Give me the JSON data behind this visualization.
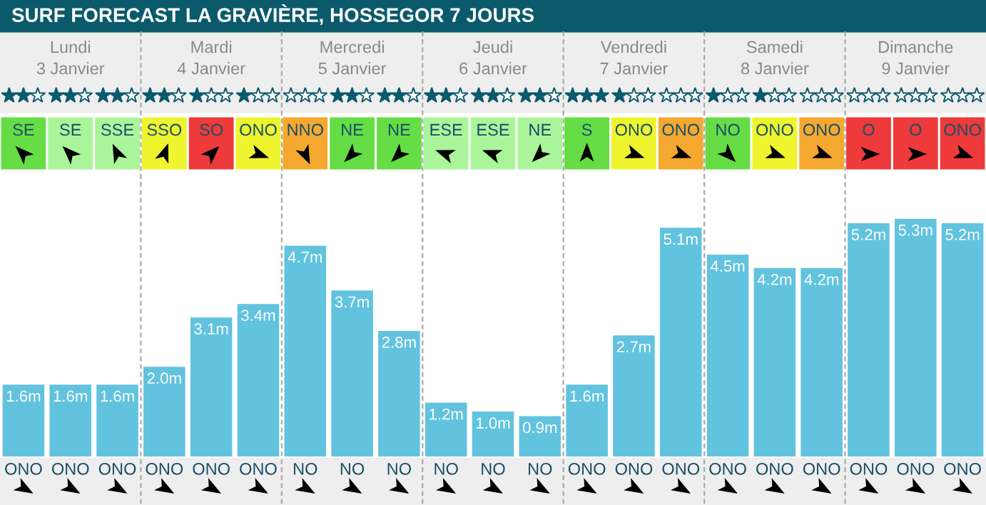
{
  "chart_data": {
    "type": "bar",
    "title": "SURF FORECAST LA GRAVIÈRE, HOSSEGOR 7 JOURS",
    "categories": [
      "ONO",
      "ONO",
      "ONO",
      "ONO",
      "ONO",
      "ONO",
      "NO",
      "NO",
      "NO",
      "NO",
      "NO",
      "NO",
      "ONO",
      "ONO",
      "ONO",
      "ONO",
      "ONO",
      "ONO",
      "ONO",
      "ONO",
      "ONO"
    ],
    "values": [
      1.6,
      1.6,
      1.6,
      2.0,
      3.1,
      3.4,
      4.7,
      3.7,
      2.8,
      1.2,
      1.0,
      0.9,
      1.6,
      2.7,
      5.1,
      4.5,
      4.2,
      4.2,
      5.2,
      5.3,
      5.2
    ],
    "value_labels": [
      "1.6m",
      "1.6m",
      "1.6m",
      "2.0m",
      "3.1m",
      "3.4m",
      "4.7m",
      "3.7m",
      "2.8m",
      "1.2m",
      "1.0m",
      "0.9m",
      "1.6m",
      "2.7m",
      "5.1m",
      "4.5m",
      "4.2m",
      "4.2m",
      "5.2m",
      "5.3m",
      "5.2m"
    ],
    "color": "#62c3df",
    "annotations": [
      "Lundi",
      "3 Janvier",
      "Mardi",
      "4 Janvier",
      "Mercredi",
      "5 Janvier",
      "Jeudi",
      "6 Janvier",
      "Vendredi",
      "7 Janvier",
      "Samedi",
      "8 Janvier",
      "Dimanche",
      "9 Janvier",
      "SE",
      "SE",
      "SSE",
      "SSO",
      "SO",
      "ONO",
      "NNO",
      "NE",
      "NE",
      "ESE",
      "ESE",
      "NE",
      "S",
      "ONO",
      "ONO",
      "NO",
      "ONO",
      "ONO",
      "O",
      "O",
      "ONO"
    ]
  }
}
